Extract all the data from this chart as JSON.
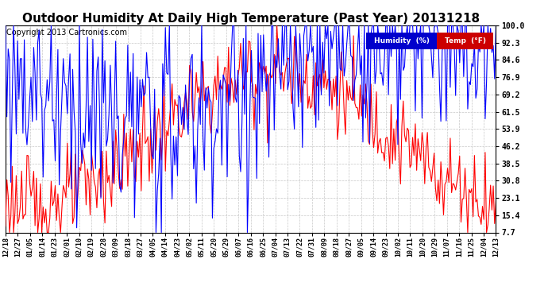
{
  "title": "Outdoor Humidity At Daily High Temperature (Past Year) 20131218",
  "copyright": "Copyright 2013 Cartronics.com",
  "yticks": [
    7.7,
    15.4,
    23.1,
    30.8,
    38.5,
    46.2,
    53.9,
    61.5,
    69.2,
    76.9,
    84.6,
    92.3,
    100.0
  ],
  "ylim": [
    7.7,
    100.0
  ],
  "bg_color": "#ffffff",
  "plot_bg_color": "#ffffff",
  "grid_color": "#c8c8c8",
  "humidity_color": "#0000ff",
  "temp_color": "#ff0000",
  "legend_humidity_bg": "#0000cc",
  "legend_temp_bg": "#cc0000",
  "title_fontsize": 11,
  "copyright_fontsize": 7,
  "xlabel_dates": [
    "12/18",
    "12/27",
    "01/05",
    "01/14",
    "01/23",
    "02/01",
    "02/10",
    "02/19",
    "02/28",
    "03/09",
    "03/18",
    "03/27",
    "04/05",
    "04/14",
    "04/23",
    "05/02",
    "05/11",
    "05/20",
    "05/29",
    "06/07",
    "06/16",
    "06/25",
    "07/04",
    "07/13",
    "07/22",
    "07/31",
    "08/09",
    "08/18",
    "08/27",
    "09/05",
    "09/14",
    "09/23",
    "10/02",
    "10/11",
    "10/20",
    "10/29",
    "11/07",
    "11/16",
    "11/25",
    "12/04",
    "12/13"
  ],
  "n_points": 366
}
